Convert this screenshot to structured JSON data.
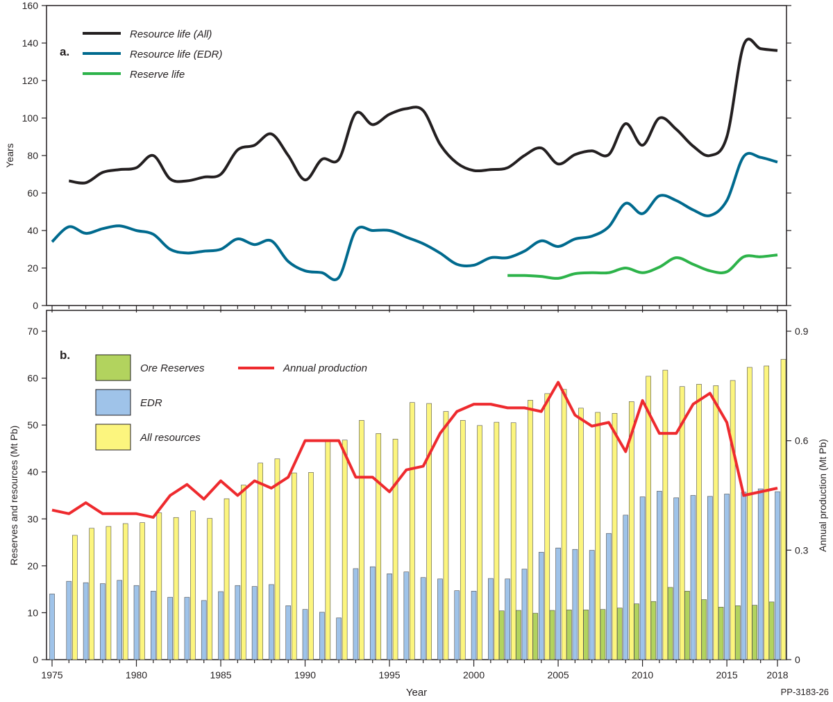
{
  "chart_data": [
    {
      "panel_label": "a.",
      "type": "line",
      "ylabel": "Years",
      "ylim": [
        0,
        160
      ],
      "yticks": [
        0,
        20,
        40,
        60,
        80,
        100,
        120,
        140,
        160
      ],
      "xlim": [
        1975,
        2018
      ],
      "series": [
        {
          "name": "Resource life (All)",
          "color": "#231f20",
          "x_start": 1976,
          "values": [
            66.5,
            65.5,
            71,
            72.5,
            73.5,
            80,
            67.5,
            66.5,
            68.5,
            70,
            83,
            85.5,
            91.5,
            80,
            67,
            78,
            78,
            102.5,
            96.5,
            102,
            105,
            104,
            86,
            76,
            72,
            72.5,
            73.5,
            80,
            84,
            75.5,
            80.5,
            82.5,
            80.5,
            97,
            85.5,
            100,
            94,
            85,
            80,
            90,
            139,
            137,
            136
          ]
        },
        {
          "name": "Resource life (EDR)",
          "color": "#006a8e",
          "x_start": 1975,
          "values": [
            34,
            42,
            38.5,
            41,
            42.5,
            40,
            38,
            30,
            28,
            29,
            30,
            35.5,
            32.5,
            34.5,
            23.5,
            18.5,
            17.5,
            15,
            40,
            40,
            40,
            36.5,
            33,
            28,
            22,
            21.5,
            25.5,
            25.5,
            29,
            34.5,
            31.5,
            35.5,
            37,
            42,
            54.5,
            49,
            58.5,
            56,
            51,
            48,
            56,
            79.5,
            79,
            76.5
          ]
        },
        {
          "name": "Reserve life",
          "color": "#2db34a",
          "x_start": 2002,
          "values": [
            16,
            16,
            15.5,
            14.5,
            17,
            17.5,
            17.5,
            20,
            17.5,
            20.5,
            25.5,
            22,
            18.5,
            18,
            26,
            26,
            27
          ]
        }
      ]
    },
    {
      "panel_label": "b.",
      "type": "bar",
      "xlabel": "Year",
      "ylabel": "Reserves and resources (Mt Pb)",
      "ylabel_right": "Annual production (Mt Pb)",
      "ylim": [
        0,
        70
      ],
      "ylim_right": [
        0,
        0.9
      ],
      "yticks": [
        0,
        10,
        20,
        30,
        40,
        50,
        60,
        70
      ],
      "yticks_right": [
        "0",
        "0.3",
        "0.6",
        "0.9"
      ],
      "xlim": [
        1975,
        2018
      ],
      "xticks": [
        "1975",
        "1980",
        "1985",
        "1990",
        "1995",
        "2000",
        "2005",
        "2010",
        "2015",
        "2018"
      ],
      "bar_series": [
        {
          "name": "Ore Reserves",
          "color": "#b2d35e",
          "x_start": 2002,
          "values": [
            10.4,
            10.5,
            9.9,
            10.5,
            10.6,
            10.6,
            10.7,
            11,
            11.9,
            12.4,
            15.4,
            14.6,
            12.8,
            11.2,
            11.5,
            11.6,
            12.3
          ]
        },
        {
          "name": "EDR",
          "color": "#9fc3e9",
          "x_start": 1975,
          "values": [
            14,
            16.7,
            16.4,
            16.2,
            16.9,
            15.8,
            14.6,
            13.3,
            13.3,
            12.6,
            14.5,
            15.8,
            15.6,
            16,
            11.5,
            10.7,
            10.1,
            8.9,
            19.4,
            19.8,
            18.3,
            18.7,
            17.5,
            17.2,
            14.7,
            14.6,
            17.3,
            17.2,
            19.3,
            22.9,
            23.8,
            23.5,
            23.3,
            26.9,
            30.8,
            34.7,
            35.9,
            34.5,
            35,
            34.8,
            35.3,
            35.7,
            36.4,
            35.8
          ]
        },
        {
          "name": "All resources",
          "color": "#fcf57e",
          "x_start": 1976,
          "values": [
            26.5,
            28,
            28.4,
            29,
            29.2,
            31.3,
            30.3,
            31.7,
            30.1,
            34.3,
            37.2,
            41.9,
            42.8,
            39.8,
            39.9,
            46.8,
            46.8,
            51,
            48.2,
            47,
            54.8,
            54.6,
            52.9,
            51,
            49.9,
            50.6,
            50.5,
            55.3,
            56.7,
            57.6,
            53.6,
            52.7,
            52.5,
            55,
            60.4,
            61.7,
            58.2,
            58.7,
            58.4,
            59.5,
            62.3,
            62.6,
            64
          ]
        }
      ],
      "line_series": {
        "name": "Annual production",
        "color": "#ee2a2e",
        "axis": "right",
        "x_start": 1975,
        "values": [
          0.41,
          0.4,
          0.43,
          0.4,
          0.4,
          0.4,
          0.39,
          0.45,
          0.48,
          0.44,
          0.49,
          0.45,
          0.49,
          0.47,
          0.5,
          0.6,
          0.6,
          0.6,
          0.5,
          0.5,
          0.46,
          0.52,
          0.53,
          0.62,
          0.68,
          0.7,
          0.7,
          0.69,
          0.69,
          0.68,
          0.76,
          0.67,
          0.64,
          0.65,
          0.57,
          0.71,
          0.62,
          0.62,
          0.7,
          0.73,
          0.65,
          0.45,
          0.46,
          0.47
        ]
      }
    }
  ],
  "figure_code": "PP-3183-26"
}
